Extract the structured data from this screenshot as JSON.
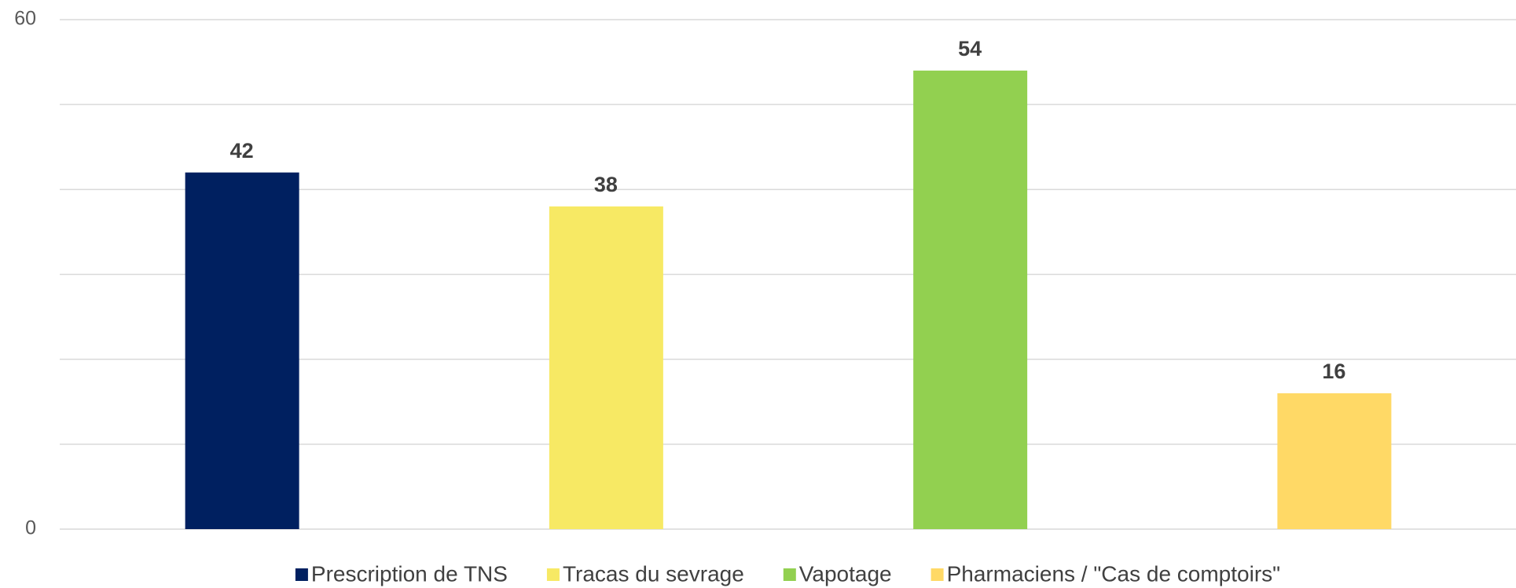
{
  "chart_data": {
    "type": "bar",
    "series": [
      {
        "name": "Prescription de TNS",
        "color": "#002060",
        "values": [
          42
        ]
      },
      {
        "name": "Tracas du sevrage",
        "color": "#f7e964",
        "values": [
          38
        ]
      },
      {
        "name": "Vapotage",
        "color": "#92d050",
        "values": [
          54
        ]
      },
      {
        "name": "Pharmaciens / \"Cas de comptoirs\"",
        "color": "#ffd966",
        "values": [
          16
        ]
      }
    ],
    "ylim": [
      0,
      60
    ],
    "yticks": [
      0,
      60
    ],
    "grid_lines": [
      0,
      10,
      20,
      30,
      40,
      50,
      60
    ],
    "grid": true,
    "legend": "bottom"
  }
}
